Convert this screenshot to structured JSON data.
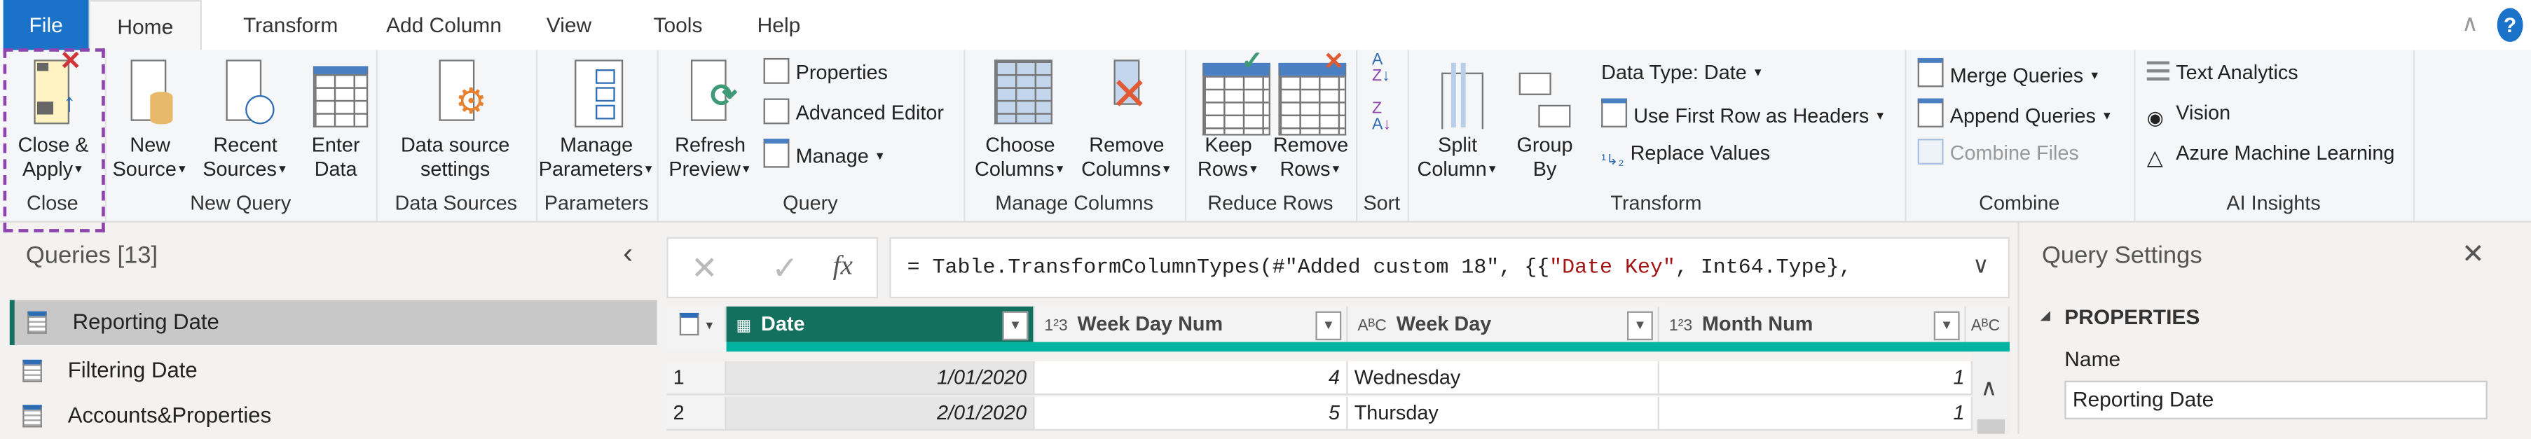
{
  "tabs": [
    "File",
    "Home",
    "Transform",
    "Add Column",
    "View",
    "Tools",
    "Help"
  ],
  "active_tab": "Home",
  "ribbon": {
    "close": {
      "label": "Close",
      "close_apply_1": "Close &",
      "close_apply_2": "Apply"
    },
    "new_query": {
      "label": "New Query",
      "new_source_1": "New",
      "new_source_2": "Source",
      "recent_sources_1": "Recent",
      "recent_sources_2": "Sources",
      "enter_data_1": "Enter",
      "enter_data_2": "Data"
    },
    "data_sources": {
      "label": "Data Sources",
      "btn_1": "Data source",
      "btn_2": "settings"
    },
    "parameters": {
      "label": "Parameters",
      "btn_1": "Manage",
      "btn_2": "Parameters"
    },
    "query": {
      "label": "Query",
      "refresh_1": "Refresh",
      "refresh_2": "Preview",
      "properties": "Properties",
      "advanced_editor": "Advanced Editor",
      "manage": "Manage"
    },
    "manage_columns": {
      "label": "Manage Columns",
      "choose_1": "Choose",
      "choose_2": "Columns",
      "remove_1": "Remove",
      "remove_2": "Columns"
    },
    "reduce_rows": {
      "label": "Reduce Rows",
      "keep_1": "Keep",
      "keep_2": "Rows",
      "remove_1": "Remove",
      "remove_2": "Rows"
    },
    "sort": {
      "label": "Sort"
    },
    "transform": {
      "label": "Transform",
      "split_1": "Split",
      "split_2": "Column",
      "group_1": "Group",
      "group_2": "By",
      "data_type": "Data Type: Date",
      "first_row": "Use First Row as Headers",
      "replace": "Replace Values"
    },
    "combine": {
      "label": "Combine",
      "merge": "Merge Queries",
      "append": "Append Queries",
      "combine_files": "Combine Files"
    },
    "ai": {
      "label": "AI Insights",
      "text_analytics": "Text Analytics",
      "vision": "Vision",
      "azure_ml": "Azure Machine Learning"
    }
  },
  "queries": {
    "title": "Queries [13]",
    "items": [
      "Reporting Date",
      "Filtering Date",
      "Accounts&Properties"
    ],
    "selected": "Reporting Date"
  },
  "formula": {
    "prefix": "= Table.TransformColumnTypes(#\"Added custom 18\", {{",
    "string": "\"Date Key\"",
    "suffix": ", Int64.Type},"
  },
  "grid": {
    "columns": [
      {
        "name": "Date",
        "type": "date"
      },
      {
        "name": "Week Day Num",
        "type": "123"
      },
      {
        "name": "Week Day",
        "type": "ABC"
      },
      {
        "name": "Month Num",
        "type": "123"
      }
    ],
    "rows": [
      [
        "1",
        "1/01/2020",
        "4",
        "Wednesday",
        "1"
      ],
      [
        "2",
        "2/01/2020",
        "5",
        "Thursday",
        "1"
      ]
    ]
  },
  "settings": {
    "title": "Query Settings",
    "section": "PROPERTIES",
    "name_label": "Name",
    "name_value": "Reporting Date"
  },
  "colors": {
    "file_tab": "#1a73c8",
    "date_header": "#13705f",
    "quality_bar": "#00b2a0",
    "highlight": "#8e44ad",
    "string_literal": "#a31515"
  }
}
